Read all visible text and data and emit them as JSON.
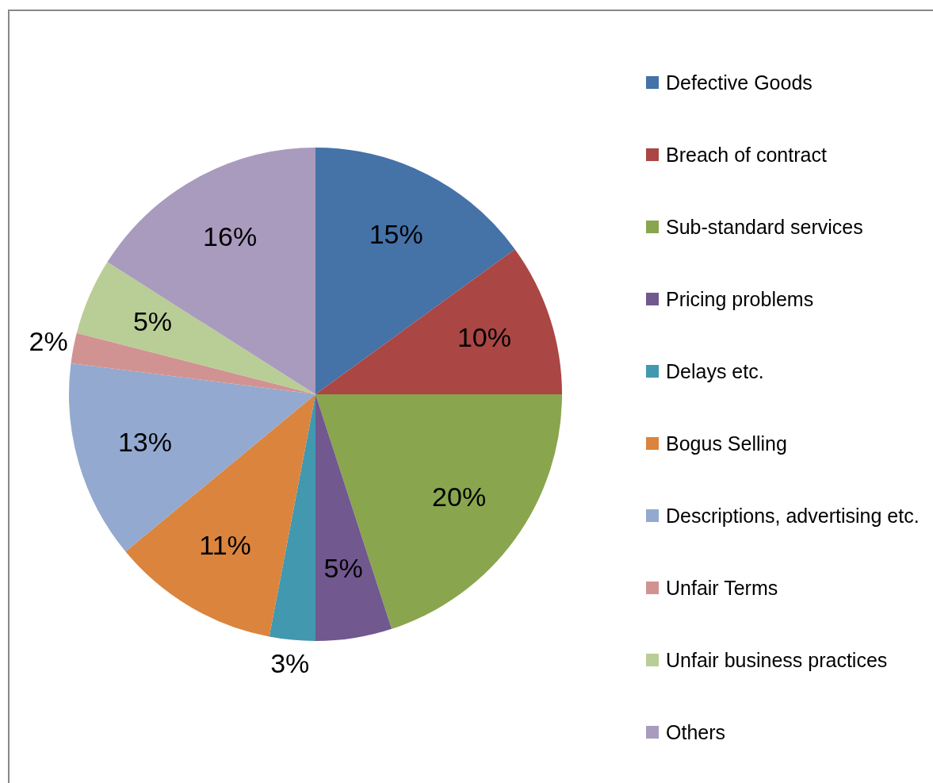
{
  "chart_data": {
    "type": "pie",
    "categories": [
      "Defective Goods",
      "Breach of contract",
      "Sub-standard services",
      "Pricing problems",
      "Delays etc.",
      "Bogus Selling",
      "Descriptions, advertising etc.",
      "Unfair Terms",
      "Unfair business practices",
      "Others"
    ],
    "values": [
      15,
      10,
      20,
      5,
      3,
      11,
      13,
      2,
      5,
      16
    ],
    "colors": [
      "#4572a7",
      "#aa4643",
      "#89a54e",
      "#71588f",
      "#4198af",
      "#db843d",
      "#93a9cf",
      "#d19392",
      "#b9cd96",
      "#a99bbd"
    ],
    "value_labels": [
      "15%",
      "10%",
      "20%",
      "5%",
      "3%",
      "11%",
      "13%",
      "2%",
      "5%",
      "16%"
    ],
    "legend": "right"
  }
}
